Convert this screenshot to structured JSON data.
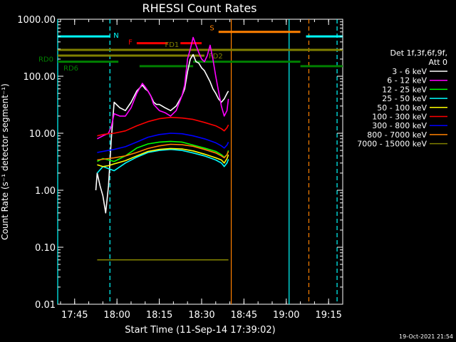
{
  "chart_data": {
    "type": "line",
    "title": "RHESSI Count Rates",
    "xlabel": "Start Time (11-Sep-14 17:39:02)",
    "ylabel": "Count Rate (s⁻¹ detector segment⁻¹)",
    "yscale": "log",
    "ylim": [
      0.01,
      1000
    ],
    "xlim_minutes": [
      0,
      101
    ],
    "x_start": "17:39:02",
    "x_ticks": [
      {
        "label": "17:45",
        "min": 6
      },
      {
        "label": "18:00",
        "min": 21
      },
      {
        "label": "18:15",
        "min": 36
      },
      {
        "label": "18:30",
        "min": 51
      },
      {
        "label": "18:45",
        "min": 66
      },
      {
        "label": "19:00",
        "min": 81
      },
      {
        "label": "19:15",
        "min": 96
      }
    ],
    "y_ticks": [
      {
        "label": "1000.00",
        "v": 1000
      },
      {
        "label": "100.00",
        "v": 100
      },
      {
        "label": "10.00",
        "v": 10
      },
      {
        "label": "1.00",
        "v": 1
      },
      {
        "label": "0.10",
        "v": 0.1
      },
      {
        "label": "0.01",
        "v": 0.01
      }
    ],
    "legend_header": [
      "Det 1f,3f,6f,9f,",
      "Att 0"
    ],
    "legend_position": "right",
    "series": [
      {
        "name": "3 - 6 keV",
        "color": "#ffffff",
        "x": [
          13.5,
          14,
          15,
          16,
          17,
          18,
          19,
          20,
          22,
          24,
          26,
          28,
          30,
          31,
          32,
          33,
          34,
          35,
          36,
          37,
          38,
          40,
          42,
          44,
          45,
          46,
          47,
          48,
          49,
          50,
          51,
          52,
          53,
          54,
          55,
          56,
          57,
          58,
          59,
          60,
          60.5
        ],
        "y": [
          1.0,
          2.0,
          1.2,
          0.8,
          0.4,
          1.2,
          8.0,
          35.0,
          28.0,
          25.0,
          35.0,
          55.0,
          70.0,
          60.0,
          55.0,
          45.0,
          35.0,
          32.0,
          32.0,
          30.0,
          28.0,
          25.0,
          30.0,
          45.0,
          60.0,
          120.0,
          200.0,
          240.0,
          180.0,
          170.0,
          140.0,
          125.0,
          100.0,
          80.0,
          60.0,
          50.0,
          40.0,
          35.0,
          40.0,
          50.0,
          55.0
        ]
      },
      {
        "name": "6 - 12 keV",
        "color": "#ff00ff",
        "x": [
          14,
          16,
          18,
          19,
          20,
          22,
          24,
          26,
          28,
          30,
          31,
          32,
          33,
          34,
          36,
          38,
          40,
          42,
          44,
          45,
          46,
          47,
          48,
          49,
          50,
          51,
          52,
          53,
          54,
          55,
          56,
          57,
          58,
          59,
          60,
          60.5
        ],
        "y": [
          8.0,
          9.0,
          10.0,
          13.0,
          22.0,
          20.0,
          20.0,
          28.0,
          50.0,
          75.0,
          65.0,
          55.0,
          45.0,
          32.0,
          25.0,
          23.0,
          20.0,
          25.0,
          45.0,
          70.0,
          200.0,
          300.0,
          480.0,
          350.0,
          260.0,
          200.0,
          180.0,
          230.0,
          350.0,
          200.0,
          100.0,
          55.0,
          30.0,
          20.0,
          25.0,
          40.0
        ]
      },
      {
        "name": "12 - 25 keV",
        "color": "#00ff00",
        "x": [
          14,
          16,
          18,
          20,
          24,
          28,
          32,
          36,
          40,
          44,
          48,
          52,
          56,
          58,
          59,
          60,
          60.5
        ],
        "y": [
          3.2,
          3.6,
          3.4,
          3.2,
          4.0,
          5.5,
          6.5,
          7.0,
          7.2,
          7.0,
          6.2,
          5.5,
          4.8,
          4.2,
          3.8,
          4.2,
          5.0
        ]
      },
      {
        "name": "25 - 50 keV",
        "color": "#00ffff",
        "x": [
          14,
          16,
          18,
          20,
          24,
          28,
          32,
          36,
          40,
          44,
          48,
          52,
          56,
          58,
          59,
          60,
          60.5
        ],
        "y": [
          2.0,
          2.6,
          2.4,
          2.2,
          3.0,
          3.8,
          4.6,
          5.0,
          5.2,
          5.0,
          4.5,
          4.0,
          3.4,
          3.0,
          2.6,
          3.0,
          3.5
        ]
      },
      {
        "name": "50 - 100 keV",
        "color": "#ffff00",
        "x": [
          14,
          16,
          18,
          20,
          24,
          28,
          32,
          36,
          40,
          44,
          48,
          52,
          56,
          58,
          59,
          60,
          60.5
        ],
        "y": [
          2.8,
          2.6,
          2.7,
          2.9,
          3.3,
          4.0,
          4.8,
          5.2,
          5.4,
          5.3,
          4.9,
          4.3,
          3.7,
          3.4,
          3.0,
          3.6,
          4.2
        ]
      },
      {
        "name": "100 - 300 keV",
        "color": "#ff0000",
        "x": [
          14,
          16,
          18,
          20,
          24,
          28,
          32,
          36,
          40,
          44,
          48,
          52,
          56,
          58,
          59,
          60,
          60.5
        ],
        "y": [
          9.0,
          9.5,
          9.8,
          10.0,
          11.0,
          13.5,
          16.0,
          18.0,
          19.0,
          18.5,
          17.5,
          15.5,
          13.5,
          12.0,
          11.0,
          12.5,
          14.0
        ]
      },
      {
        "name": "300 - 800 keV",
        "color": "#0000ff",
        "x": [
          14,
          16,
          18,
          20,
          24,
          28,
          32,
          36,
          40,
          44,
          48,
          52,
          56,
          58,
          59,
          60,
          60.5
        ],
        "y": [
          4.6,
          4.8,
          5.0,
          5.2,
          5.8,
          7.0,
          8.5,
          9.5,
          10.0,
          9.8,
          9.0,
          8.0,
          6.8,
          6.0,
          5.5,
          6.2,
          7.0
        ]
      },
      {
        "name": "800 - 7000 keV",
        "color": "#ff8000",
        "x": [
          14,
          16,
          18,
          20,
          24,
          28,
          32,
          36,
          40,
          44,
          48,
          52,
          56,
          58,
          59,
          60,
          60.5
        ],
        "y": [
          3.4,
          3.5,
          3.6,
          3.7,
          4.0,
          4.6,
          5.4,
          6.0,
          6.4,
          6.3,
          5.9,
          5.2,
          4.5,
          4.0,
          3.7,
          4.2,
          4.8
        ]
      },
      {
        "name": "7000 - 15000 keV",
        "color": "#808000",
        "x": [
          14,
          18,
          24,
          30,
          36,
          42,
          48,
          54,
          58,
          60,
          60.5
        ],
        "y": [
          0.06,
          0.06,
          0.06,
          0.06,
          0.06,
          0.06,
          0.06,
          0.06,
          0.06,
          0.06,
          0.06
        ]
      }
    ],
    "flag_bars": [
      {
        "label": "N",
        "color": "#00ffff",
        "segments": [
          [
            0,
            18.5
          ],
          [
            88,
            101
          ]
        ],
        "y": 500
      },
      {
        "label": "F",
        "color": "#ff0000",
        "segments": [
          [
            28,
            39
          ],
          [
            43.5,
            51
          ]
        ],
        "y": 380
      },
      {
        "label": "S",
        "color": "#ff8000",
        "segments": [
          [
            57,
            86
          ]
        ],
        "y": 600
      },
      {
        "label": "FD1",
        "color": "#808000",
        "segments": [
          [
            0,
            101
          ]
        ],
        "y": 290
      },
      {
        "label": "FD2",
        "color": "#808000",
        "segments": [
          [
            0,
            48
          ],
          [
            48,
            52
          ]
        ],
        "y": 230
      },
      {
        "label": "RD0",
        "color": "#008000",
        "segments": [
          [
            0,
            21.5
          ],
          [
            48,
            86
          ]
        ],
        "y": 180
      },
      {
        "label": "RD6",
        "color": "#008000",
        "segments": [
          [
            29,
            48
          ],
          [
            86,
            101
          ]
        ],
        "y": 150
      }
    ],
    "vertical_markers": [
      {
        "x": 0,
        "color": "#00ffff",
        "style": "solid"
      },
      {
        "x": 18.5,
        "color": "#00ffff",
        "style": "dashed"
      },
      {
        "x": 61.5,
        "color": "#ff8000",
        "style": "solid"
      },
      {
        "x": 82,
        "color": "#00ffff",
        "style": "solid"
      },
      {
        "x": 89,
        "color": "#ff8000",
        "style": "dashed"
      },
      {
        "x": 99,
        "color": "#00ffff",
        "style": "dashed"
      }
    ],
    "footer_date": "19-Oct-2021 21:54"
  }
}
